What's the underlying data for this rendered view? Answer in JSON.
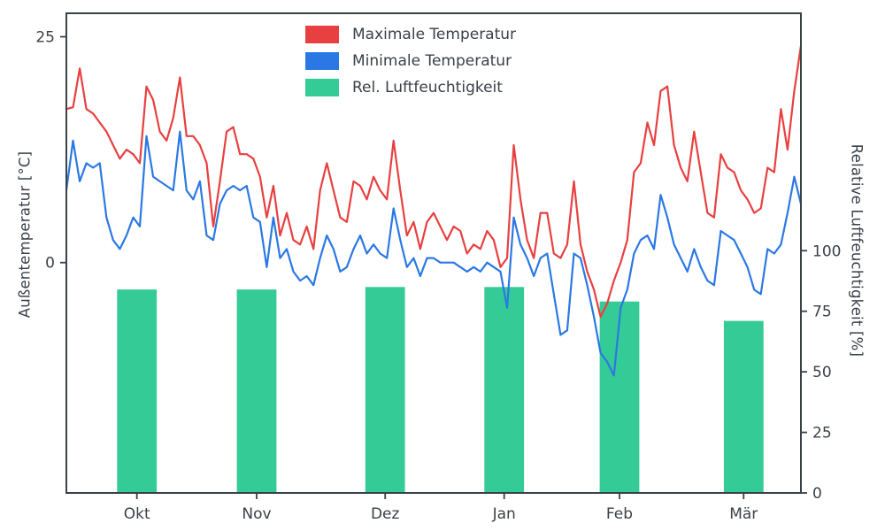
{
  "chart_data": {
    "type": "line+bar",
    "title": "",
    "x_tick_labels": [
      "Okt",
      "Nov",
      "Dez",
      "Jan",
      "Feb",
      "Mär"
    ],
    "x_tick_positions": [
      0.096,
      0.259,
      0.434,
      0.596,
      0.753,
      0.922
    ],
    "y_left": {
      "label": "Außentemperatur [°C]",
      "ticks": [
        0,
        25
      ],
      "range": [
        -25.5,
        27.6
      ]
    },
    "y_right": {
      "label": "Relative Luftfeuchtigkeit [%]",
      "ticks": [
        0,
        25,
        50,
        75,
        100
      ],
      "range": [
        0,
        198
      ]
    },
    "legend_position": "upper center",
    "grid": false,
    "axis_color": "#3b4148",
    "series": [
      {
        "name": "Maximale Temperatur",
        "type": "line",
        "axis": "left",
        "color": "#e84040",
        "values": [
          17,
          17.2,
          21.5,
          17,
          16.5,
          15.5,
          14.5,
          13,
          11.5,
          12.5,
          12,
          11,
          19.5,
          18,
          14.5,
          13.5,
          16,
          20.5,
          14,
          14,
          13,
          11,
          4,
          9,
          14.5,
          15,
          12,
          12,
          11.5,
          9.5,
          5,
          8.5,
          3,
          5.5,
          2.5,
          2,
          4,
          1.5,
          8,
          11,
          8,
          5,
          4.5,
          9,
          8.5,
          7,
          9.5,
          8,
          7,
          13.5,
          8,
          3,
          4.5,
          1.5,
          4.5,
          5.5,
          4,
          2.5,
          4,
          3.5,
          1,
          2,
          1.5,
          3.5,
          2.5,
          -0.5,
          0.5,
          13,
          7,
          2.5,
          0.5,
          5.5,
          5.5,
          1,
          0.5,
          2,
          9,
          2,
          -1,
          -3,
          -6,
          -4.5,
          -2,
          0,
          2.5,
          10,
          11,
          15.5,
          13,
          19,
          19.5,
          13,
          10.5,
          9,
          14.5,
          10,
          5.5,
          5,
          12,
          10.5,
          10,
          8,
          7,
          5.5,
          6,
          10.5,
          10,
          17,
          12.5,
          19,
          24
        ]
      },
      {
        "name": "Minimale Temperatur",
        "type": "line",
        "axis": "left",
        "color": "#2b78e4",
        "values": [
          8,
          13.5,
          9,
          11,
          10.5,
          11,
          5,
          2.5,
          1.5,
          3,
          5,
          4,
          14,
          9.5,
          9,
          8.5,
          8,
          14.5,
          8,
          7,
          9,
          3,
          2.5,
          6.5,
          8,
          8.5,
          8,
          8.5,
          5,
          4.5,
          -0.5,
          5,
          0.5,
          1.5,
          -1,
          -2,
          -1.5,
          -2.5,
          0.5,
          3,
          1.5,
          -1,
          -0.5,
          1.5,
          3,
          1,
          2,
          1,
          0.5,
          6,
          2.5,
          -0.5,
          0.5,
          -1.5,
          0.5,
          0.5,
          0,
          0,
          0,
          -0.5,
          -1,
          -0.5,
          -1,
          0,
          -0.5,
          -1,
          -5,
          5,
          2,
          0.5,
          -1.5,
          0.5,
          1,
          -3.5,
          -8,
          -7.5,
          1,
          0.5,
          -2.5,
          -6,
          -10,
          -11,
          -12.5,
          -5,
          -3,
          1,
          2.5,
          3,
          1.5,
          7.5,
          5,
          2,
          0.5,
          -1,
          1.5,
          -0.5,
          -2,
          -2.5,
          3.5,
          3,
          2.5,
          1,
          -0.5,
          -3,
          -3.5,
          1.5,
          1,
          2,
          5.5,
          9.5,
          6.5
        ]
      },
      {
        "name": "Rel. Luftfeuchtigkeit",
        "type": "bar",
        "axis": "right",
        "color": "#35cb96",
        "bar_width_fraction": 0.054,
        "categories": [
          "Okt",
          "Nov",
          "Dez",
          "Jan",
          "Feb",
          "Mär"
        ],
        "values": [
          84,
          84,
          85,
          85,
          79,
          71
        ]
      }
    ]
  }
}
